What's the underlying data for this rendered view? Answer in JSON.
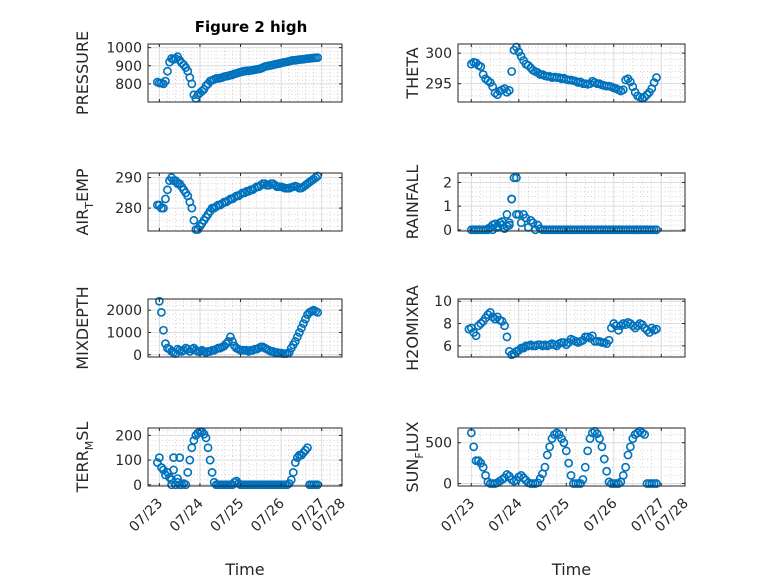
{
  "figure": {
    "title": "Figure 2 high"
  },
  "colors": {
    "marker": "#0072BD",
    "axes": "#262626",
    "grid": "#dcdcdc",
    "background": "#ffffff"
  },
  "chart_data": [
    {
      "type": "scatter",
      "ylabel": "PRESSURE",
      "yticks": [
        800,
        900,
        1000
      ],
      "ylim": [
        700,
        1020
      ],
      "x": [
        0.45,
        0.5,
        0.55,
        0.6,
        0.65,
        0.7,
        0.75,
        0.8,
        0.85,
        0.9,
        0.95,
        1.0,
        1.05,
        1.1,
        1.15,
        1.2,
        1.25,
        1.3,
        1.35,
        1.4,
        1.45,
        1.5,
        1.55,
        1.6,
        1.65,
        1.7,
        1.75,
        1.8,
        1.85,
        1.9,
        1.95,
        2.0,
        2.05,
        2.1,
        2.15,
        2.2,
        2.25,
        2.3,
        2.35,
        2.4,
        2.45,
        2.5,
        2.55,
        2.6,
        2.65,
        2.7,
        2.75,
        2.8,
        2.85,
        2.9,
        2.95,
        3.0,
        3.05,
        3.1,
        3.15,
        3.2,
        3.25,
        3.3,
        3.35,
        3.4,
        3.45,
        3.5,
        3.55,
        3.6,
        3.65,
        3.7,
        3.75,
        3.8,
        3.85,
        3.9,
        3.95,
        4.0,
        4.05,
        4.1,
        4.15,
        4.2,
        4.25,
        4.3,
        4.35,
        4.4
      ],
      "y": [
        810,
        805,
        805,
        800,
        815,
        870,
        920,
        940,
        935,
        940,
        950,
        930,
        915,
        905,
        890,
        870,
        835,
        800,
        740,
        720,
        740,
        750,
        760,
        770,
        790,
        800,
        815,
        820,
        825,
        830,
        830,
        832,
        835,
        840,
        842,
        845,
        848,
        850,
        855,
        858,
        862,
        865,
        868,
        870,
        872,
        872,
        874,
        876,
        878,
        880,
        882,
        885,
        890,
        895,
        898,
        900,
        902,
        905,
        908,
        910,
        912,
        915,
        918,
        920,
        922,
        925,
        928,
        930,
        930,
        932,
        934,
        935,
        936,
        938,
        940,
        940,
        942,
        943,
        944,
        945
      ]
    },
    {
      "type": "scatter",
      "ylabel": "THETA",
      "yticks": [
        295,
        300
      ],
      "ylim": [
        292,
        301.5
      ],
      "x": [
        0.5,
        0.55,
        0.6,
        0.65,
        0.7,
        0.75,
        0.8,
        0.85,
        0.9,
        0.95,
        1.0,
        1.05,
        1.1,
        1.15,
        1.2,
        1.25,
        1.3,
        1.35,
        1.4,
        1.45,
        1.5,
        1.55,
        1.6,
        1.65,
        1.7,
        1.75,
        1.8,
        1.85,
        1.9,
        1.95,
        2.0,
        2.05,
        2.1,
        2.15,
        2.2,
        2.25,
        2.3,
        2.35,
        2.4,
        2.45,
        2.5,
        2.55,
        2.6,
        2.65,
        2.7,
        2.75,
        2.8,
        2.85,
        2.9,
        2.95,
        3.0,
        3.05,
        3.1,
        3.15,
        3.2,
        3.25,
        3.3,
        3.35,
        3.4,
        3.45,
        3.5,
        3.55,
        3.6,
        3.65,
        3.7,
        3.75,
        3.8,
        3.85,
        3.9,
        3.95,
        4.0,
        4.05,
        4.1,
        4.15,
        4.2,
        4.25,
        4.3,
        4.35,
        4.4
      ],
      "y": [
        298.2,
        298.5,
        298.4,
        298.0,
        297.8,
        296.5,
        295.8,
        295.5,
        295.2,
        294.5,
        293.5,
        293.2,
        293.8,
        294.0,
        294.2,
        293.6,
        293.9,
        297.0,
        300.5,
        301.0,
        300.2,
        299.5,
        298.8,
        298.2,
        298.0,
        297.6,
        297.2,
        297.0,
        296.8,
        296.5,
        296.5,
        296.3,
        296.2,
        296.2,
        296.0,
        296.1,
        296.0,
        296.0,
        295.8,
        295.9,
        295.7,
        295.6,
        295.6,
        295.5,
        295.4,
        295.2,
        295.3,
        295.0,
        295.0,
        294.9,
        295.0,
        295.4,
        295.2,
        295.0,
        295.0,
        294.8,
        294.7,
        294.6,
        294.6,
        294.5,
        294.3,
        294.2,
        294.0,
        293.8,
        294.0,
        295.6,
        295.8,
        295.3,
        294.5,
        293.6,
        293.0,
        292.8,
        292.6,
        292.8,
        293.2,
        293.6,
        294.2,
        295.2,
        296.0
      ]
    },
    {
      "type": "scatter",
      "ylabel": "AIR_TEMP",
      "ylabel_main": "AIR",
      "ylabel_sub": "T",
      "ylabel_rest": "EMP",
      "yticks": [
        280,
        290
      ],
      "ylim": [
        272.5,
        291.5
      ],
      "x": [
        0.45,
        0.5,
        0.55,
        0.6,
        0.65,
        0.7,
        0.75,
        0.8,
        0.85,
        0.9,
        0.95,
        1.0,
        1.05,
        1.1,
        1.15,
        1.2,
        1.25,
        1.3,
        1.35,
        1.4,
        1.45,
        1.5,
        1.55,
        1.6,
        1.65,
        1.7,
        1.75,
        1.8,
        1.85,
        1.9,
        1.95,
        2.0,
        2.05,
        2.1,
        2.15,
        2.2,
        2.25,
        2.3,
        2.35,
        2.4,
        2.45,
        2.5,
        2.55,
        2.6,
        2.65,
        2.7,
        2.75,
        2.8,
        2.85,
        2.9,
        2.95,
        3.0,
        3.05,
        3.1,
        3.15,
        3.2,
        3.25,
        3.3,
        3.35,
        3.4,
        3.45,
        3.5,
        3.55,
        3.6,
        3.65,
        3.7,
        3.75,
        3.8,
        3.85,
        3.9,
        3.95,
        4.0,
        4.05,
        4.1,
        4.15,
        4.2,
        4.25,
        4.3,
        4.35,
        4.4
      ],
      "y": [
        281,
        281,
        280,
        280,
        283,
        286,
        289,
        290,
        289,
        289,
        288,
        288,
        287,
        286,
        285,
        284,
        282,
        280,
        276,
        273,
        273,
        274,
        275,
        276,
        277,
        278,
        279,
        280,
        280,
        280.5,
        281,
        281,
        281.5,
        282,
        282,
        282.5,
        283,
        283,
        283.5,
        284,
        284,
        284.5,
        285,
        285,
        285.5,
        285.5,
        286,
        286,
        286.5,
        287,
        287,
        287.5,
        288,
        288,
        287.5,
        287.5,
        288,
        288,
        287.5,
        287,
        287,
        287,
        286.8,
        286.5,
        286.5,
        286.5,
        286.8,
        287,
        287.2,
        287,
        286.5,
        286.6,
        287,
        287.5,
        288,
        288.5,
        289,
        289.5,
        290,
        290.5
      ]
    },
    {
      "type": "scatter",
      "ylabel": "RAINFALL",
      "yticks": [
        0,
        1,
        2
      ],
      "ylim": [
        -0.05,
        2.4
      ],
      "x": [
        0.5,
        0.55,
        0.6,
        0.65,
        0.7,
        0.75,
        0.8,
        0.85,
        0.9,
        0.95,
        1.0,
        1.05,
        1.1,
        1.15,
        1.2,
        1.25,
        1.3,
        1.35,
        1.4,
        1.45,
        1.5,
        1.55,
        1.6,
        1.65,
        1.7,
        1.75,
        1.8,
        1.85,
        1.9,
        1.95,
        2.0,
        2.05,
        2.1,
        2.15,
        2.2,
        2.25,
        2.3,
        2.35,
        2.4,
        2.45,
        2.5,
        2.55,
        2.6,
        2.65,
        2.7,
        2.75,
        2.8,
        2.85,
        2.9,
        2.95,
        3.0,
        3.05,
        3.1,
        3.15,
        3.2,
        3.25,
        3.3,
        3.35,
        3.4,
        3.45,
        3.5,
        3.55,
        3.6,
        3.65,
        3.7,
        3.75,
        3.8,
        3.85,
        3.9,
        3.95,
        4.0,
        4.05,
        4.1,
        4.15,
        4.2,
        4.25,
        4.3,
        4.35,
        4.4,
        0.85,
        0.95,
        1.05,
        1.15,
        1.25,
        1.3,
        1.35,
        1.45
      ],
      "y": [
        0,
        0,
        0,
        0,
        0,
        0,
        0,
        0,
        0.1,
        0.2,
        0.25,
        0.1,
        0.3,
        0.2,
        0.05,
        0.15,
        0.3,
        1.3,
        2.2,
        2.2,
        0.65,
        0.3,
        0.65,
        0.5,
        0.1,
        0.4,
        0.3,
        0,
        0.2,
        0.05,
        0,
        0,
        0,
        0,
        0,
        0,
        0,
        0,
        0,
        0,
        0,
        0,
        0,
        0,
        0,
        0,
        0,
        0,
        0,
        0,
        0,
        0,
        0,
        0,
        0,
        0,
        0,
        0,
        0,
        0,
        0,
        0,
        0,
        0,
        0,
        0,
        0,
        0,
        0,
        0,
        0,
        0,
        0,
        0,
        0,
        0,
        0,
        0,
        0,
        0.05,
        0,
        0.15,
        0.35,
        0.65,
        0.2,
        1.3,
        0.65
      ]
    },
    {
      "type": "scatter",
      "ylabel": "MIXDEPTH",
      "yticks": [
        0,
        1000,
        2000
      ],
      "ylim": [
        -100,
        2500
      ],
      "x": [
        0.5,
        0.55,
        0.6,
        0.65,
        0.7,
        0.75,
        0.8,
        0.85,
        0.9,
        0.95,
        1.0,
        1.05,
        1.1,
        1.15,
        1.2,
        1.25,
        1.3,
        1.35,
        1.4,
        1.45,
        1.5,
        1.55,
        1.6,
        1.65,
        1.7,
        1.75,
        1.8,
        1.85,
        1.9,
        1.95,
        2.0,
        2.05,
        2.1,
        2.15,
        2.2,
        2.25,
        2.3,
        2.35,
        2.4,
        2.45,
        2.5,
        2.55,
        2.6,
        2.65,
        2.7,
        2.75,
        2.8,
        2.85,
        2.9,
        2.95,
        3.0,
        3.05,
        3.1,
        3.15,
        3.2,
        3.25,
        3.3,
        3.35,
        3.4,
        3.45,
        3.5,
        3.55,
        3.6,
        3.65,
        3.7,
        3.75,
        3.8,
        3.85,
        3.9,
        3.95,
        4.0,
        4.05,
        4.1,
        4.15,
        4.2,
        4.25,
        4.3,
        4.35,
        4.4
      ],
      "y": [
        2400,
        1900,
        1100,
        500,
        300,
        250,
        150,
        100,
        50,
        250,
        200,
        150,
        200,
        300,
        250,
        150,
        250,
        300,
        200,
        150,
        150,
        200,
        150,
        100,
        150,
        150,
        200,
        200,
        250,
        300,
        300,
        350,
        400,
        500,
        600,
        800,
        600,
        400,
        300,
        250,
        200,
        200,
        200,
        200,
        150,
        200,
        200,
        250,
        250,
        300,
        350,
        350,
        300,
        250,
        200,
        150,
        150,
        100,
        100,
        80,
        80,
        50,
        50,
        60,
        100,
        300,
        450,
        600,
        800,
        1000,
        1200,
        1400,
        1600,
        1800,
        1900,
        1950,
        2000,
        1950,
        1900
      ]
    },
    {
      "type": "scatter",
      "ylabel": "H2OMIXRA",
      "yticks": [
        6,
        8,
        10
      ],
      "ylim": [
        5,
        10.2
      ],
      "x": [
        0.45,
        0.5,
        0.55,
        0.6,
        0.65,
        0.7,
        0.75,
        0.8,
        0.85,
        0.9,
        0.95,
        1.0,
        1.05,
        1.1,
        1.15,
        1.2,
        1.25,
        1.3,
        1.35,
        1.4,
        1.45,
        1.5,
        1.55,
        1.6,
        1.65,
        1.7,
        1.75,
        1.8,
        1.85,
        1.9,
        1.95,
        2.0,
        2.05,
        2.1,
        2.15,
        2.2,
        2.25,
        2.3,
        2.35,
        2.4,
        2.45,
        2.5,
        2.55,
        2.6,
        2.65,
        2.7,
        2.75,
        2.8,
        2.85,
        2.9,
        2.95,
        3.0,
        3.05,
        3.1,
        3.15,
        3.2,
        3.25,
        3.3,
        3.35,
        3.4,
        3.45,
        3.5,
        3.55,
        3.6,
        3.65,
        3.7,
        3.75,
        3.8,
        3.85,
        3.9,
        3.95,
        4.0,
        4.05,
        4.1,
        4.15,
        4.2,
        4.25,
        4.3,
        4.35,
        4.4
      ],
      "y": [
        7.5,
        7.6,
        7.2,
        6.9,
        7.8,
        8.0,
        8.2,
        8.5,
        8.8,
        9.0,
        8.6,
        8.4,
        8.6,
        8.3,
        8.2,
        7.8,
        6.8,
        5.5,
        5.2,
        5.3,
        5.5,
        5.6,
        5.8,
        5.8,
        6.0,
        6.0,
        6.1,
        6.0,
        6.0,
        6.1,
        6.1,
        6.0,
        6.1,
        6.0,
        6.1,
        6.2,
        6.1,
        6.0,
        6.2,
        6.3,
        6.3,
        6.1,
        6.3,
        6.6,
        6.5,
        6.4,
        6.3,
        6.4,
        6.5,
        6.8,
        6.8,
        6.7,
        6.9,
        6.4,
        6.4,
        6.4,
        6.3,
        6.3,
        6.2,
        6.5,
        7.6,
        8.0,
        7.8,
        7.4,
        7.8,
        8.0,
        7.9,
        8.1,
        8.0,
        7.8,
        7.6,
        7.8,
        8.0,
        7.9,
        7.6,
        7.4,
        7.2,
        7.6,
        7.4,
        7.5
      ]
    },
    {
      "type": "scatter",
      "ylabel": "TERR_MSL",
      "ylabel_main": "TERR",
      "ylabel_sub": "M",
      "ylabel_rest": "SL",
      "yticks": [
        0,
        100,
        200
      ],
      "ylim": [
        -5,
        230
      ],
      "x": [
        0.45,
        0.5,
        0.55,
        0.6,
        0.65,
        0.7,
        0.75,
        0.8,
        0.85,
        0.9,
        0.95,
        1.0,
        1.05,
        1.1,
        1.15,
        1.2,
        1.25,
        1.3,
        1.35,
        1.4,
        1.45,
        1.5,
        1.55,
        1.6,
        1.65,
        1.7,
        1.75,
        1.8,
        1.85,
        1.9,
        1.95,
        2.0,
        2.05,
        2.1,
        2.15,
        2.2,
        2.25,
        2.3,
        2.35,
        2.4,
        2.45,
        2.5,
        2.55,
        2.6,
        2.65,
        2.7,
        2.75,
        2.8,
        2.85,
        2.9,
        2.95,
        3.0,
        3.05,
        3.1,
        3.15,
        3.2,
        3.25,
        3.3,
        3.35,
        3.4,
        3.45,
        3.5,
        3.55,
        3.6,
        3.65,
        3.7,
        3.75,
        3.8,
        3.85,
        3.9,
        3.95,
        4.0,
        4.05,
        4.1,
        4.15,
        4.2,
        4.25,
        4.3,
        4.35,
        4.4,
        0.8,
        0.85,
        0.9,
        0.95,
        1.0
      ],
      "y": [
        90,
        110,
        70,
        60,
        40,
        50,
        30,
        20,
        110,
        0,
        10,
        0,
        0,
        5,
        0,
        50,
        100,
        150,
        180,
        200,
        210,
        215,
        215,
        205,
        190,
        150,
        100,
        50,
        10,
        0,
        0,
        0,
        0,
        0,
        0,
        0,
        0,
        0,
        10,
        15,
        5,
        0,
        0,
        0,
        0,
        0,
        0,
        0,
        0,
        0,
        0,
        0,
        0,
        0,
        0,
        0,
        0,
        0,
        0,
        0,
        0,
        0,
        0,
        0,
        0,
        5,
        20,
        50,
        90,
        110,
        120,
        120,
        130,
        140,
        150,
        0,
        0,
        0,
        0,
        0,
        0,
        60,
        0,
        25,
        110
      ]
    },
    {
      "type": "scatter",
      "ylabel": "SUN_FLUX",
      "ylabel_main": "SUN",
      "ylabel_sub": "F",
      "ylabel_rest": "LUX",
      "yticks": [
        0,
        500
      ],
      "ylim": [
        -30,
        680
      ],
      "x": [
        0.5,
        0.55,
        0.6,
        0.65,
        0.7,
        0.75,
        0.8,
        0.85,
        0.9,
        0.95,
        1.0,
        1.05,
        1.1,
        1.15,
        1.2,
        1.25,
        1.3,
        1.35,
        1.4,
        1.45,
        1.5,
        1.55,
        1.6,
        1.65,
        1.7,
        1.75,
        1.8,
        1.85,
        1.9,
        1.95,
        2.0,
        2.05,
        2.1,
        2.15,
        2.2,
        2.25,
        2.3,
        2.35,
        2.4,
        2.45,
        2.5,
        2.55,
        2.6,
        2.65,
        2.7,
        2.75,
        2.8,
        2.85,
        2.9,
        2.95,
        3.0,
        3.05,
        3.1,
        3.15,
        3.2,
        3.25,
        3.3,
        3.35,
        3.4,
        3.45,
        3.5,
        3.55,
        3.6,
        3.65,
        3.7,
        3.75,
        3.8,
        3.85,
        3.9,
        3.95,
        4.0,
        4.05,
        4.1,
        4.15,
        4.2,
        4.25,
        4.3,
        4.35,
        4.4
      ],
      "y": [
        620,
        450,
        280,
        280,
        250,
        200,
        100,
        20,
        0,
        0,
        0,
        10,
        30,
        50,
        70,
        110,
        90,
        50,
        30,
        40,
        80,
        100,
        70,
        40,
        10,
        0,
        0,
        0,
        10,
        60,
        120,
        200,
        350,
        450,
        550,
        600,
        620,
        600,
        550,
        500,
        400,
        250,
        100,
        0,
        0,
        0,
        0,
        50,
        200,
        400,
        550,
        620,
        640,
        610,
        550,
        450,
        300,
        150,
        20,
        0,
        0,
        0,
        0,
        20,
        100,
        200,
        350,
        450,
        550,
        600,
        620,
        640,
        620,
        600,
        0,
        0,
        0,
        0,
        0
      ]
    }
  ],
  "xaxis": {
    "label": "Time",
    "xlim": [
      0.22,
      5.0
    ],
    "ticks": [
      {
        "value": 0.5,
        "label": "07/23"
      },
      {
        "value": 1.5,
        "label": "07/24"
      },
      {
        "value": 2.5,
        "label": "07/25"
      },
      {
        "value": 3.5,
        "label": "07/26"
      },
      {
        "value": 4.5,
        "label": "07/27"
      },
      {
        "value": 5.0,
        "label": "07/28"
      }
    ]
  }
}
